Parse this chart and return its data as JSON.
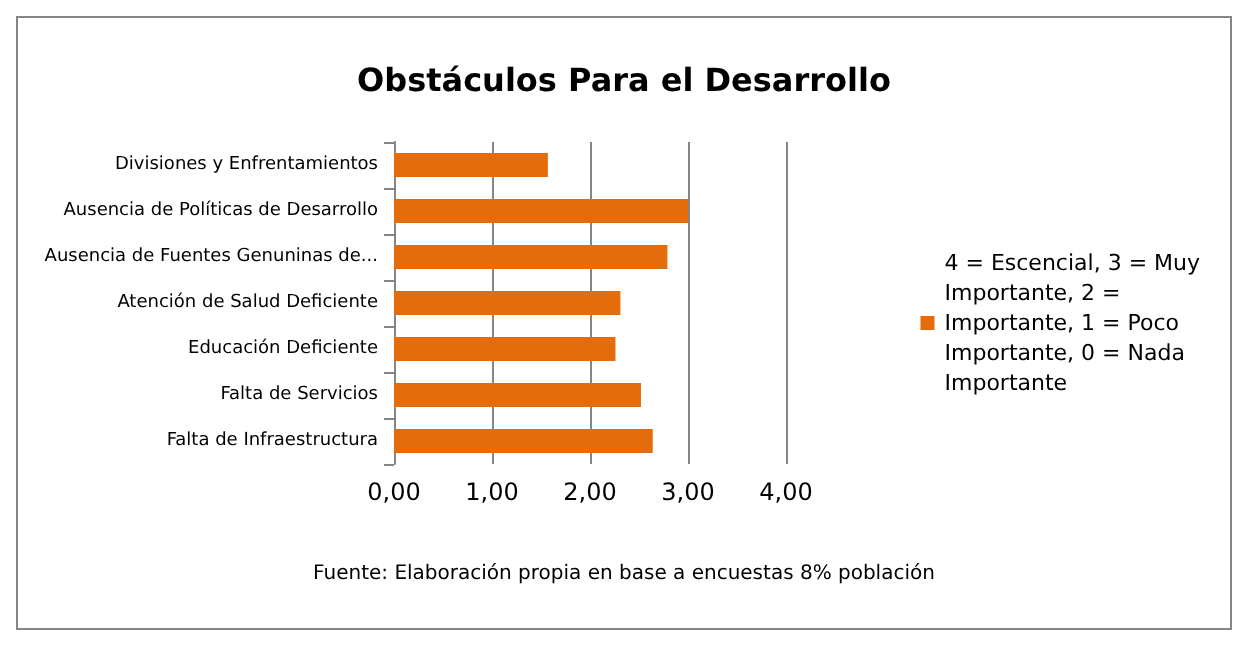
{
  "chart_data": {
    "type": "bar",
    "orientation": "horizontal",
    "title": "Obstáculos Para el Desarrollo",
    "categories": [
      "Divisiones y Enfrentamientos",
      "Ausencia de Políticas de Desarrollo",
      "Ausencia de Fuentes Genuninas de...",
      "Atención de Salud Deficiente",
      "Educación Deficiente",
      "Falta de Servicios",
      "Falta de Infraestructura"
    ],
    "series": [
      {
        "name": "4 = Escencial, 3 = Muy Importante, 2 = Importante, 1 = Poco Importante, 0 = Nada Importante",
        "color": "#e46c0a",
        "values": [
          1.57,
          3.0,
          2.79,
          2.31,
          2.26,
          2.52,
          2.64
        ]
      }
    ],
    "xlim": [
      0,
      4
    ],
    "xticks": [
      {
        "value": 0,
        "label": "0,00"
      },
      {
        "value": 1,
        "label": "1,00"
      },
      {
        "value": 2,
        "label": "2,00"
      },
      {
        "value": 3,
        "label": "3,00"
      },
      {
        "value": 4,
        "label": "4,00"
      }
    ],
    "grid": "x",
    "legend": "right",
    "annotations": [
      "Fuente: Elaboración propia en base a encuestas 8% población"
    ]
  }
}
